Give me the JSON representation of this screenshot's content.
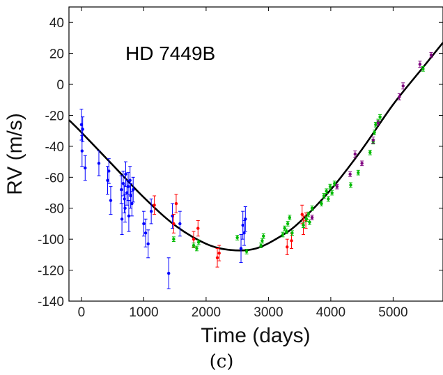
{
  "chart_data": {
    "type": "scatter",
    "title": "",
    "annotation": "HD 7449B",
    "caption": "(c)",
    "xlabel": "Time (days)",
    "ylabel": "RV (m/s)",
    "xlim": [
      -200,
      5800
    ],
    "ylim": [
      -140,
      50
    ],
    "xticks": [
      0,
      1000,
      2000,
      3000,
      4000,
      5000
    ],
    "yticks": [
      -140,
      -120,
      -100,
      -80,
      -60,
      -40,
      -20,
      0,
      20,
      40
    ],
    "grid": false,
    "legend": "none",
    "series": [
      {
        "color": "#0000ff",
        "points": [
          {
            "x": 0,
            "y": -26,
            "err": 10
          },
          {
            "x": 10,
            "y": -43,
            "err": 10
          },
          {
            "x": 20,
            "y": -29,
            "err": 8
          },
          {
            "x": 60,
            "y": -54,
            "err": 8
          },
          {
            "x": 280,
            "y": -51,
            "err": 8
          },
          {
            "x": 420,
            "y": -62,
            "err": 9
          },
          {
            "x": 440,
            "y": -56,
            "err": 8
          },
          {
            "x": 470,
            "y": -75,
            "err": 9
          },
          {
            "x": 640,
            "y": -68,
            "err": 9
          },
          {
            "x": 650,
            "y": -87,
            "err": 10
          },
          {
            "x": 670,
            "y": -64,
            "err": 8
          },
          {
            "x": 690,
            "y": -74,
            "err": 9
          },
          {
            "x": 700,
            "y": -80,
            "err": 9
          },
          {
            "x": 710,
            "y": -58,
            "err": 8
          },
          {
            "x": 730,
            "y": -70,
            "err": 8
          },
          {
            "x": 750,
            "y": -66,
            "err": 9
          },
          {
            "x": 760,
            "y": -85,
            "err": 10
          },
          {
            "x": 780,
            "y": -62,
            "err": 9
          },
          {
            "x": 790,
            "y": -72,
            "err": 8
          },
          {
            "x": 810,
            "y": -77,
            "err": 8
          },
          {
            "x": 830,
            "y": -68,
            "err": 8
          },
          {
            "x": 1000,
            "y": -90,
            "err": 8
          },
          {
            "x": 1030,
            "y": -96,
            "err": 9
          },
          {
            "x": 1070,
            "y": -103,
            "err": 9
          },
          {
            "x": 1120,
            "y": -82,
            "err": 8
          },
          {
            "x": 1400,
            "y": -122,
            "err": 10
          },
          {
            "x": 1460,
            "y": -85,
            "err": 8
          },
          {
            "x": 1580,
            "y": -90,
            "err": 8
          },
          {
            "x": 2560,
            "y": -106,
            "err": 9
          },
          {
            "x": 2590,
            "y": -91,
            "err": 9
          },
          {
            "x": 2610,
            "y": -96,
            "err": 8
          },
          {
            "x": 2630,
            "y": -87,
            "err": 8
          }
        ]
      },
      {
        "color": "#ff0000",
        "points": [
          {
            "x": 1170,
            "y": -78,
            "err": 6
          },
          {
            "x": 1480,
            "y": -90,
            "err": 6
          },
          {
            "x": 1520,
            "y": -77,
            "err": 6
          },
          {
            "x": 1800,
            "y": -100,
            "err": 5
          },
          {
            "x": 1870,
            "y": -93,
            "err": 5
          },
          {
            "x": 2180,
            "y": -112,
            "err": 6
          },
          {
            "x": 2210,
            "y": -109,
            "err": 5
          },
          {
            "x": 3300,
            "y": -105,
            "err": 5
          },
          {
            "x": 3370,
            "y": -101,
            "err": 5
          },
          {
            "x": 3540,
            "y": -84,
            "err": 6
          },
          {
            "x": 3560,
            "y": -91,
            "err": 6
          },
          {
            "x": 3600,
            "y": -88,
            "err": 5
          }
        ]
      },
      {
        "color": "#00bb00",
        "points": [
          {
            "x": 1480,
            "y": -100,
            "err": 1.5
          },
          {
            "x": 1800,
            "y": -104,
            "err": 1.5
          },
          {
            "x": 1850,
            "y": -106,
            "err": 1.5
          },
          {
            "x": 1880,
            "y": -102,
            "err": 1.5
          },
          {
            "x": 2500,
            "y": -99,
            "err": 1.5
          },
          {
            "x": 2650,
            "y": -108,
            "err": 1.5
          },
          {
            "x": 2880,
            "y": -104,
            "err": 1.5
          },
          {
            "x": 2900,
            "y": -101,
            "err": 1.5
          },
          {
            "x": 2920,
            "y": -98,
            "err": 1.5
          },
          {
            "x": 3230,
            "y": -97,
            "err": 1.5
          },
          {
            "x": 3260,
            "y": -93,
            "err": 1.5
          },
          {
            "x": 3290,
            "y": -95,
            "err": 1.5
          },
          {
            "x": 3310,
            "y": -90,
            "err": 1.5
          },
          {
            "x": 3340,
            "y": -86,
            "err": 1.5
          },
          {
            "x": 3380,
            "y": -96,
            "err": 1.5
          },
          {
            "x": 3560,
            "y": -91,
            "err": 1.5
          },
          {
            "x": 3610,
            "y": -87,
            "err": 1.5
          },
          {
            "x": 3640,
            "y": -84,
            "err": 1.5
          },
          {
            "x": 3660,
            "y": -89,
            "err": 1.5
          },
          {
            "x": 3700,
            "y": -80,
            "err": 1.5
          },
          {
            "x": 3850,
            "y": -77,
            "err": 1.5
          },
          {
            "x": 3890,
            "y": -72,
            "err": 1.5
          },
          {
            "x": 3930,
            "y": -69,
            "err": 1.5
          },
          {
            "x": 3960,
            "y": -74,
            "err": 1.5
          },
          {
            "x": 3990,
            "y": -66,
            "err": 1.5
          },
          {
            "x": 4020,
            "y": -70,
            "err": 1.5
          },
          {
            "x": 4060,
            "y": -64,
            "err": 1.5
          },
          {
            "x": 4320,
            "y": -65,
            "err": 1.5
          },
          {
            "x": 4440,
            "y": -57,
            "err": 1.5
          },
          {
            "x": 4630,
            "y": -44,
            "err": 1.5
          },
          {
            "x": 4680,
            "y": -37,
            "err": 1.5
          },
          {
            "x": 4700,
            "y": -31,
            "err": 1.5
          },
          {
            "x": 4720,
            "y": -26,
            "err": 1.5
          },
          {
            "x": 4760,
            "y": -24,
            "err": 1.5
          },
          {
            "x": 4790,
            "y": -21,
            "err": 1.5
          },
          {
            "x": 5480,
            "y": 10,
            "err": 1.5
          }
        ]
      },
      {
        "color": "#7f007f",
        "points": [
          {
            "x": 3700,
            "y": -86,
            "err": 1.5
          },
          {
            "x": 4100,
            "y": -66,
            "err": 1.5
          },
          {
            "x": 4310,
            "y": -58,
            "err": 1.5
          },
          {
            "x": 4390,
            "y": -45,
            "err": 2
          },
          {
            "x": 4500,
            "y": -51,
            "err": 1.5
          },
          {
            "x": 4680,
            "y": -36,
            "err": 2
          },
          {
            "x": 4760,
            "y": -25,
            "err": 1.5
          },
          {
            "x": 5100,
            "y": -8,
            "err": 2
          },
          {
            "x": 5160,
            "y": -1,
            "err": 2
          },
          {
            "x": 5430,
            "y": 13,
            "err": 2
          },
          {
            "x": 5610,
            "y": 19,
            "err": 1.5
          }
        ]
      }
    ],
    "fit_curve": {
      "color": "#000000",
      "points": [
        {
          "x": -200,
          "y": -23
        },
        {
          "x": 0,
          "y": -31
        },
        {
          "x": 500,
          "y": -52
        },
        {
          "x": 1000,
          "y": -73
        },
        {
          "x": 1500,
          "y": -91
        },
        {
          "x": 2000,
          "y": -103
        },
        {
          "x": 2400,
          "y": -107
        },
        {
          "x": 2800,
          "y": -106
        },
        {
          "x": 3200,
          "y": -98
        },
        {
          "x": 3500,
          "y": -89
        },
        {
          "x": 4000,
          "y": -68
        },
        {
          "x": 4500,
          "y": -42
        },
        {
          "x": 5000,
          "y": -13
        },
        {
          "x": 5500,
          "y": 12
        },
        {
          "x": 5800,
          "y": 27
        }
      ]
    }
  }
}
